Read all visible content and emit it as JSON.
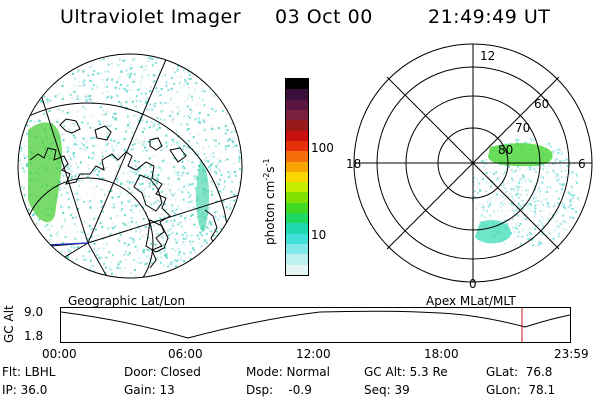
{
  "header": {
    "instrument": "Ultraviolet Imager",
    "date": "03 Oct 00",
    "time": "21:49:49 UT"
  },
  "colorbar": {
    "unit_label": "photon cm",
    "unit_sup1": "-2",
    "unit_mid": "s",
    "unit_sup2": "-1",
    "ticks": [
      "100",
      "10"
    ],
    "colors": [
      "#000000",
      "#3a0f3a",
      "#5a1540",
      "#7a1f3f",
      "#9a1a1a",
      "#c81010",
      "#e8300a",
      "#f46e0a",
      "#f8a400",
      "#f8d800",
      "#c8ec00",
      "#80e000",
      "#40d820",
      "#20d860",
      "#20d8b0",
      "#40e0d8",
      "#80e8e8",
      "#bff0f0",
      "#e4f6f6"
    ]
  },
  "geo_panel": {
    "caption": "Geographic Lat/Lon"
  },
  "polar_panel": {
    "caption": "Apex MLat/MLT",
    "lat_labels": [
      "80",
      "70",
      "60"
    ],
    "mlt_labels": [
      "12",
      "18",
      "6",
      "0"
    ]
  },
  "altitude_plot": {
    "ylabel": "GC Alt",
    "yticks": [
      "9.0",
      "1.8"
    ],
    "xticks": [
      "00:00",
      "06:00",
      "12:00",
      "18:00",
      "23:59"
    ]
  },
  "footer": {
    "flt": "Flt: LBHL",
    "ip": "IP: 36.0",
    "door": "Door: Closed",
    "gain": "Gain: 13",
    "mode": "Mode: Normal",
    "dsp": "Dsp:    -0.9",
    "gcalt": "GC Alt: 5.3 Re",
    "seq": "Seq: 39",
    "glat": "GLat:  76.8",
    "glon": "GLon:  78.1"
  }
}
